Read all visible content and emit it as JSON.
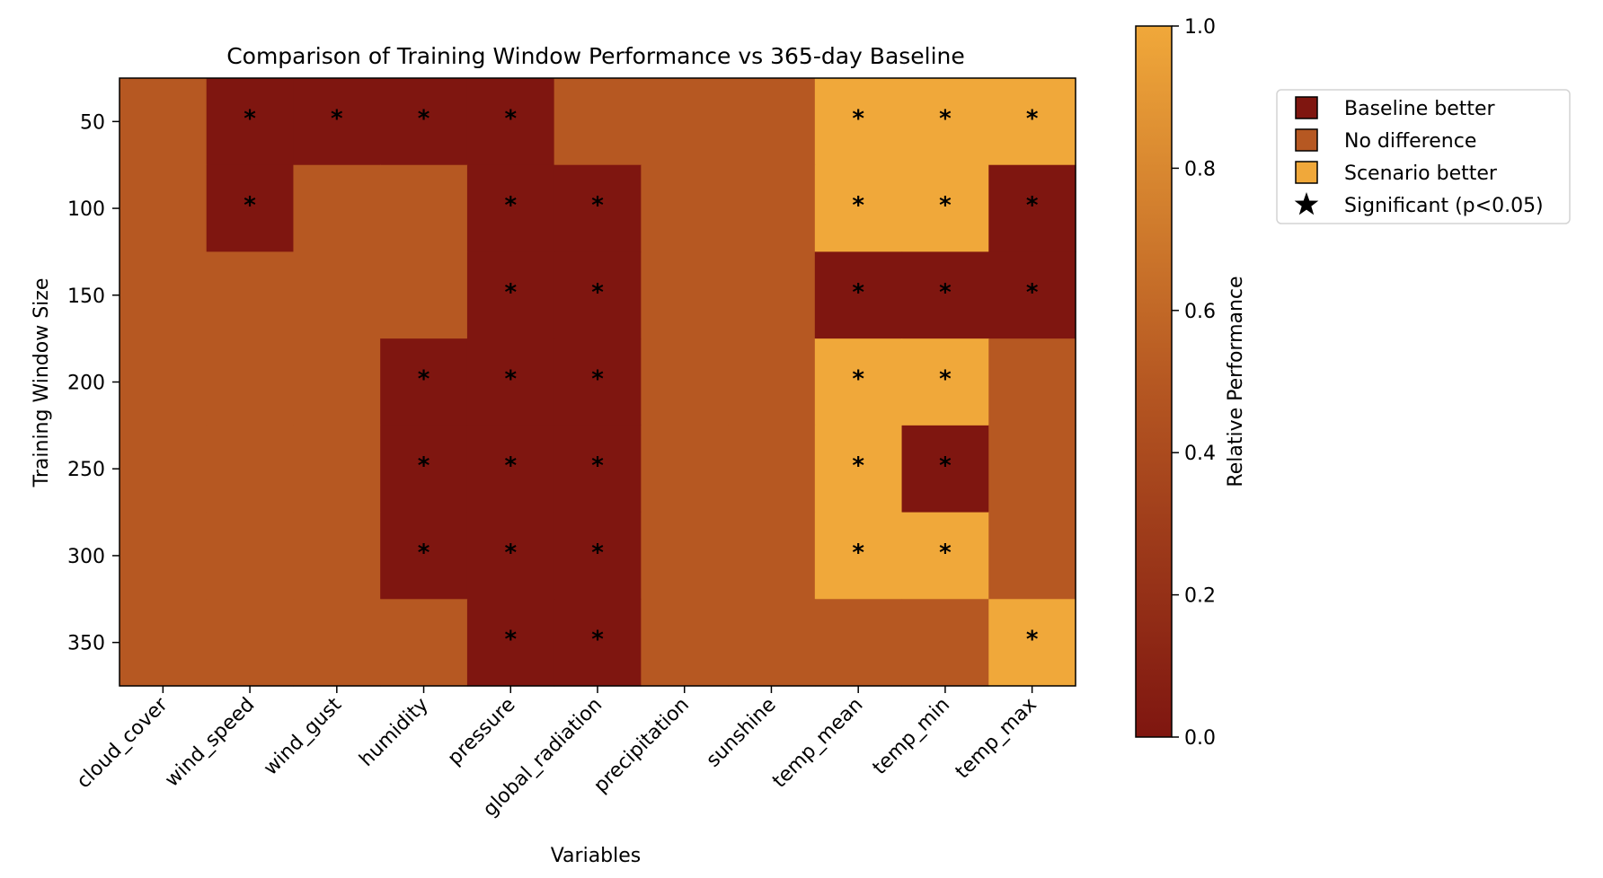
{
  "chart_data": {
    "type": "heatmap",
    "title": "Comparison of Training Window Performance vs 365-day Baseline",
    "xlabel": "Variables",
    "ylabel": "Training Window Size",
    "categories": [
      "cloud_cover",
      "wind_speed",
      "wind_gust",
      "humidity",
      "pressure",
      "global_radiation",
      "precipitation",
      "sunshine",
      "temp_mean",
      "temp_min",
      "temp_max"
    ],
    "rows": [
      "50",
      "100",
      "150",
      "200",
      "250",
      "300",
      "350"
    ],
    "values": [
      [
        0.5,
        0,
        0,
        0,
        0,
        0.5,
        0.5,
        0.5,
        1,
        1,
        1
      ],
      [
        0.5,
        0,
        0.5,
        0.5,
        0,
        0,
        0.5,
        0.5,
        1,
        1,
        0
      ],
      [
        0.5,
        0.5,
        0.5,
        0.5,
        0,
        0,
        0.5,
        0.5,
        0,
        0,
        0
      ],
      [
        0.5,
        0.5,
        0.5,
        0,
        0,
        0,
        0.5,
        0.5,
        1,
        1,
        0.5
      ],
      [
        0.5,
        0.5,
        0.5,
        0,
        0,
        0,
        0.5,
        0.5,
        1,
        0,
        0.5
      ],
      [
        0.5,
        0.5,
        0.5,
        0,
        0,
        0,
        0.5,
        0.5,
        1,
        1,
        0.5
      ],
      [
        0.5,
        0.5,
        0.5,
        0.5,
        0,
        0,
        0.5,
        0.5,
        0.5,
        0.5,
        1
      ]
    ],
    "significant": [
      [
        0,
        1,
        1,
        1,
        1,
        0,
        0,
        0,
        1,
        1,
        1
      ],
      [
        0,
        1,
        0,
        0,
        1,
        1,
        0,
        0,
        1,
        1,
        1
      ],
      [
        0,
        0,
        0,
        0,
        1,
        1,
        0,
        0,
        1,
        1,
        1
      ],
      [
        0,
        0,
        0,
        1,
        1,
        1,
        0,
        0,
        1,
        1,
        0
      ],
      [
        0,
        0,
        0,
        1,
        1,
        1,
        0,
        0,
        1,
        1,
        0
      ],
      [
        0,
        0,
        0,
        1,
        1,
        1,
        0,
        0,
        1,
        1,
        0
      ],
      [
        0,
        0,
        0,
        0,
        1,
        1,
        0,
        0,
        0,
        0,
        1
      ]
    ],
    "significance_marker": "*",
    "colorbar": {
      "label": "Relative Performance",
      "range": [
        0,
        1
      ],
      "ticks": [
        "0.0",
        "0.2",
        "0.4",
        "0.6",
        "0.8",
        "1.0"
      ],
      "colors": [
        "#7f1610",
        "#b65822",
        "#f0a83a"
      ]
    },
    "legend": {
      "placement": "upper-right-outside",
      "items": [
        {
          "label": "Baseline better",
          "color": "#7f1610",
          "marker": "square"
        },
        {
          "label": "No difference",
          "color": "#b65822",
          "marker": "square"
        },
        {
          "label": "Scenario better",
          "color": "#f0a83a",
          "marker": "square"
        },
        {
          "label": "Significant (p<0.05)",
          "color": "#000000",
          "marker": "star"
        }
      ]
    },
    "grid": false
  }
}
